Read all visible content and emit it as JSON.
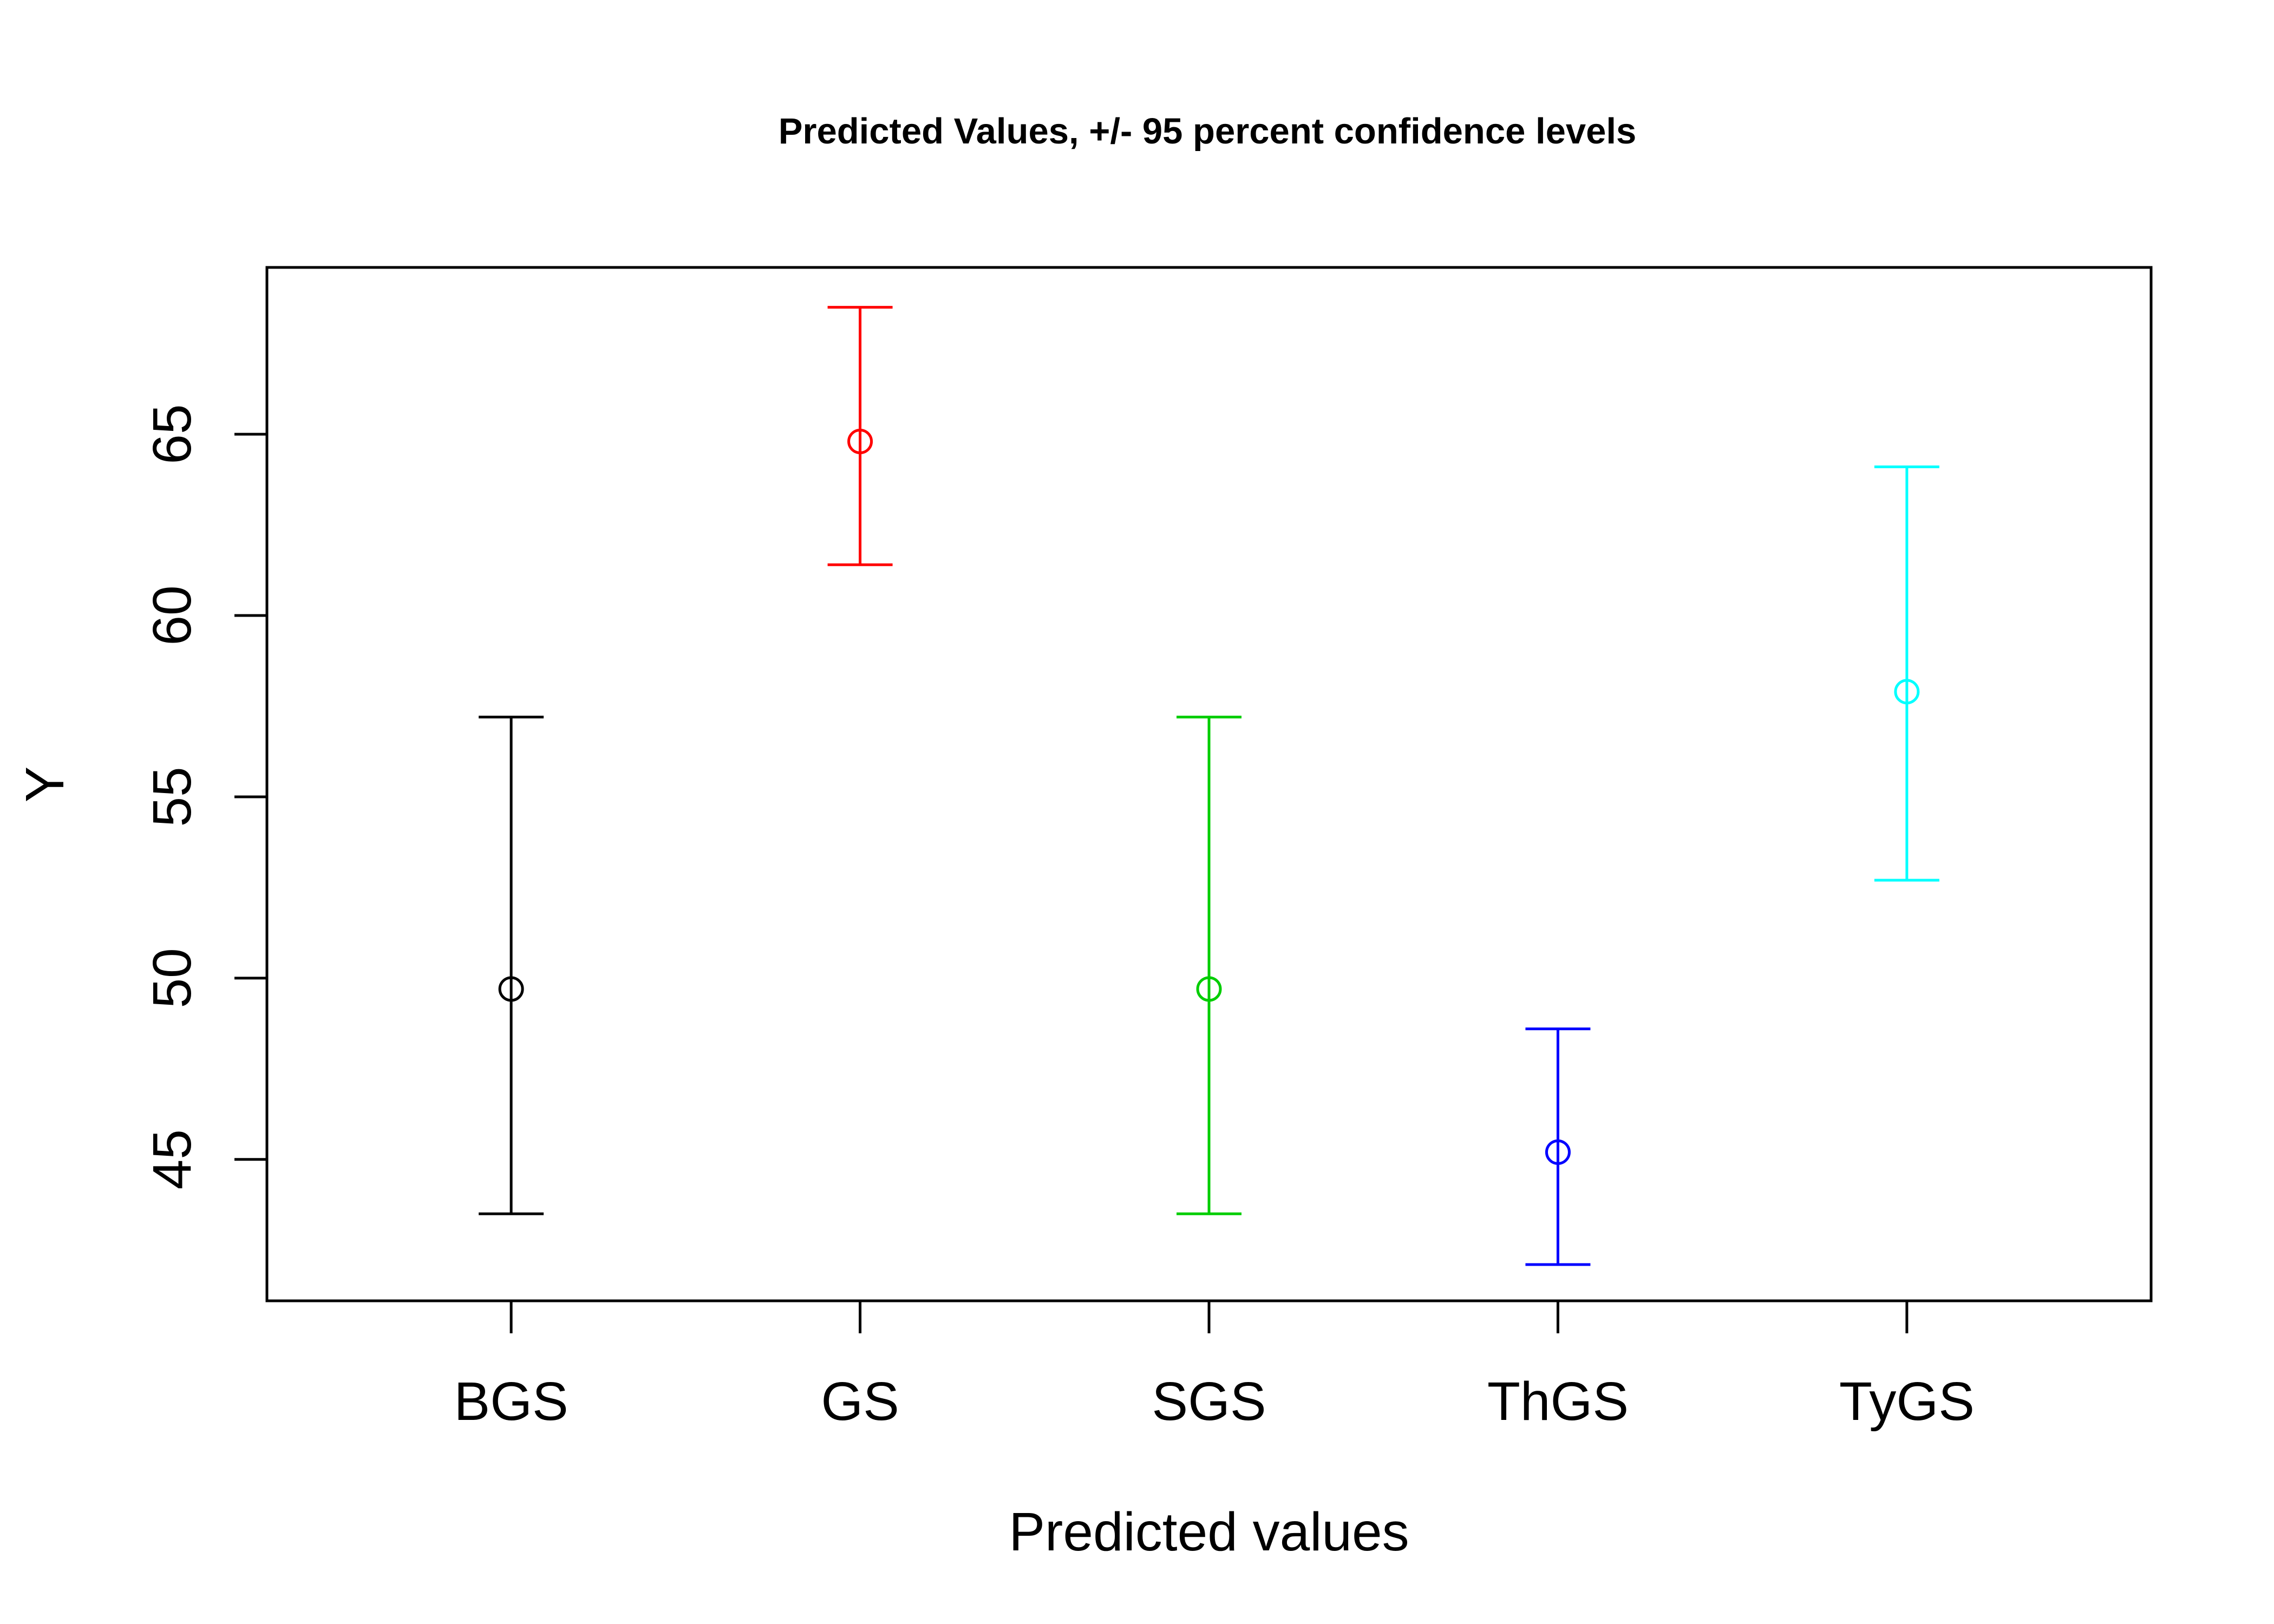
{
  "chart_data": {
    "type": "scatter",
    "title": "Predicted Values, +/- 95 percent confidence levels",
    "xlabel": "Predicted values",
    "ylabel": "Y",
    "categories": [
      "BGS",
      "GS",
      "SGS",
      "ThGS",
      "TyGS"
    ],
    "values": [
      49.7,
      64.8,
      49.7,
      45.2,
      57.9
    ],
    "lower": [
      43.5,
      61.4,
      43.5,
      42.1,
      52.7
    ],
    "upper": [
      57.2,
      68.5,
      57.2,
      48.6,
      64.1
    ],
    "colors": [
      "#000000",
      "#ff0000",
      "#00cd00",
      "#0000ff",
      "#00ffff"
    ],
    "ylim": [
      41.1,
      69.6
    ],
    "xlim": [
      0.3,
      5.7
    ],
    "yticks": [
      45,
      50,
      55,
      60,
      65
    ],
    "ytick_labels": [
      "45",
      "50",
      "55",
      "60",
      "65"
    ],
    "grid": false,
    "legend": "none"
  }
}
